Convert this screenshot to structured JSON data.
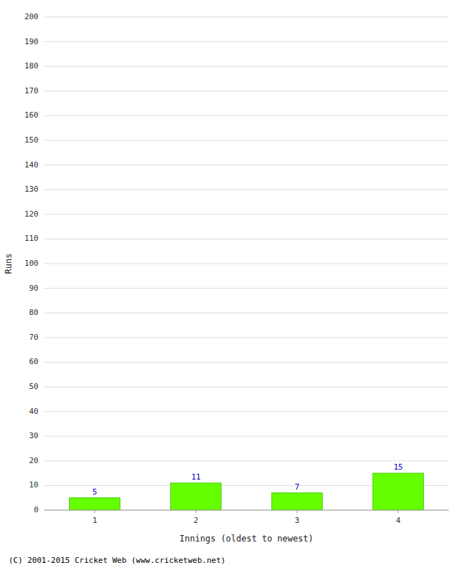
{
  "chart_data": {
    "type": "bar",
    "categories": [
      1,
      2,
      3,
      4
    ],
    "values": [
      5,
      11,
      7,
      15
    ],
    "color": "#66ff00",
    "xlabel": "Innings (oldest to newest)",
    "ylabel": "Runs",
    "ylim": [
      0,
      200
    ],
    "yticks": [
      0,
      10,
      20,
      30,
      40,
      50,
      60,
      70,
      80,
      90,
      100,
      110,
      120,
      130,
      140,
      150,
      160,
      170,
      180,
      190,
      200
    ],
    "grid": true,
    "data_labels": true,
    "footnote": "(C) 2001-2015 Cricket Web (www.cricketweb.net)"
  }
}
